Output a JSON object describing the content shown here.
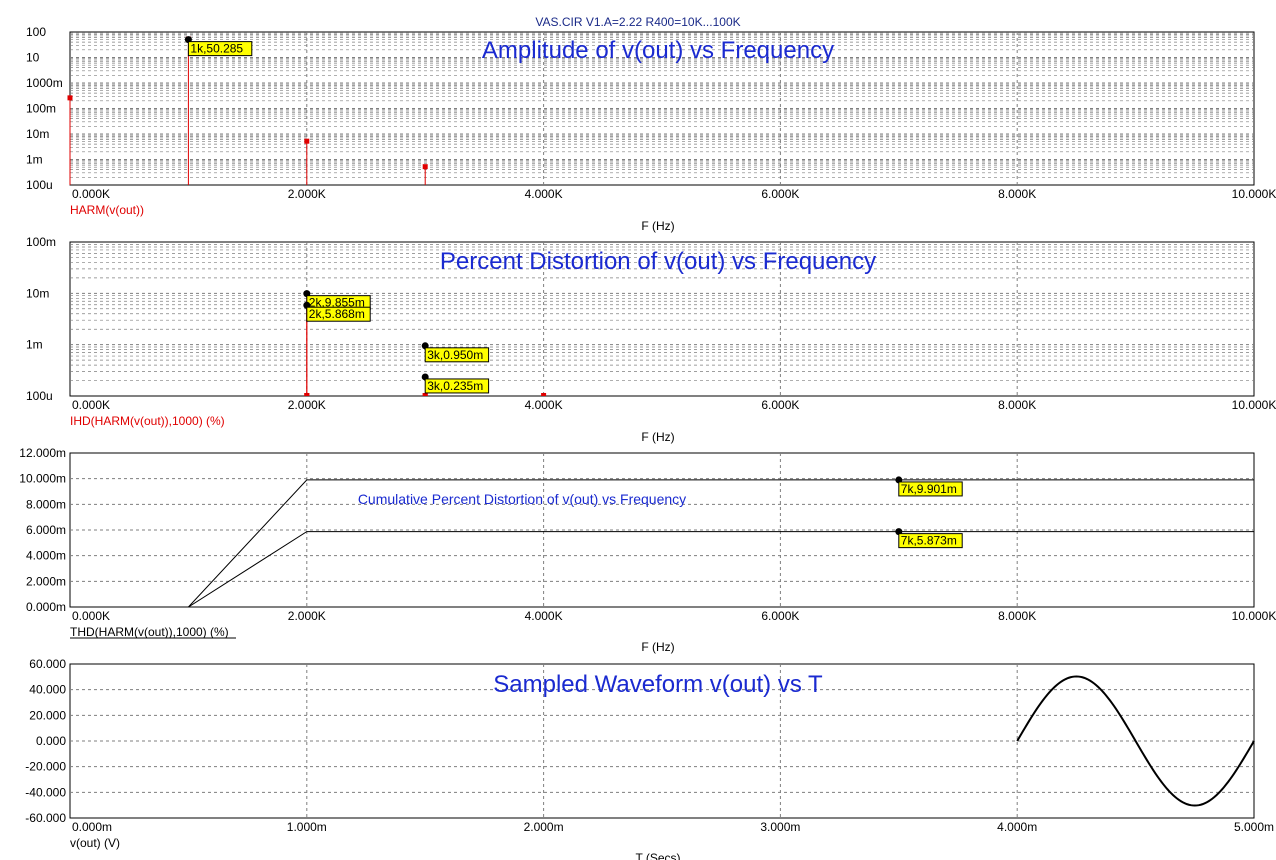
{
  "page_title": "VAS.CIR V1.A=2.22 R400=10K...100K",
  "colors": {
    "series_red": "#e00000",
    "series_black": "#000000",
    "title_blue": "#1a2ad0",
    "label_box": "#ffff00",
    "grid": "#7f7f7f"
  },
  "chart_data": [
    {
      "type": "bar",
      "title": "Amplitude of v(out) vs Frequency",
      "xlabel": "F (Hz)",
      "ylabel": "HARM(v(out))",
      "x_ticks": [
        "0.000K",
        "2.000K",
        "4.000K",
        "6.000K",
        "8.000K",
        "10.000K"
      ],
      "y_ticks": [
        "100",
        "10",
        "1000m",
        "100m",
        "10m",
        "1m",
        "100u"
      ],
      "x_range_hz": [
        0,
        10000
      ],
      "y_scale": "log",
      "y_range": [
        0.0001,
        100
      ],
      "grid": true,
      "series": [
        {
          "name": "HARM(v(out))",
          "x": [
            0,
            1000,
            2000,
            3000
          ],
          "y": [
            0.25,
            50.285,
            0.005,
            0.0005
          ]
        }
      ],
      "annotations": [
        {
          "text": "1k,50.285",
          "x": 1000,
          "y": 50.285
        }
      ]
    },
    {
      "type": "bar",
      "title": "Percent Distortion of v(out) vs Frequency",
      "xlabel": "F (Hz)",
      "ylabel": "IHD(HARM(v(out)),1000) (%)",
      "x_ticks": [
        "0.000K",
        "2.000K",
        "4.000K",
        "6.000K",
        "8.000K",
        "10.000K"
      ],
      "y_ticks": [
        "100m",
        "10m",
        "1m",
        "100u"
      ],
      "x_range_hz": [
        0,
        10000
      ],
      "y_scale": "log",
      "y_range": [
        0.0001,
        0.1
      ],
      "grid": true,
      "series": [
        {
          "name": "IHD(HARM(v(out)),1000) (%)",
          "x": [
            2000,
            2000,
            3000,
            3000,
            4000
          ],
          "y": [
            0.009855,
            0.005868,
            0.00095,
            0.000235,
            0.00011
          ]
        }
      ],
      "annotations": [
        {
          "text": "2k,9.855m",
          "x": 2000,
          "y": 0.009855
        },
        {
          "text": "2k,5.868m",
          "x": 2000,
          "y": 0.005868
        },
        {
          "text": "3k,0.950m",
          "x": 3000,
          "y": 0.00095
        },
        {
          "text": "3k,0.235m",
          "x": 3000,
          "y": 0.000235
        }
      ]
    },
    {
      "type": "line",
      "title": "Cumulative Percent Distortion of v(out) vs Frequency",
      "xlabel": "F (Hz)",
      "ylabel": "THD(HARM(v(out)),1000) (%)",
      "x_ticks": [
        "0.000K",
        "2.000K",
        "4.000K",
        "6.000K",
        "8.000K",
        "10.000K"
      ],
      "y_ticks": [
        "12.000m",
        "10.000m",
        "8.000m",
        "6.000m",
        "4.000m",
        "2.000m",
        "0.000m"
      ],
      "x_range_hz": [
        0,
        10000
      ],
      "y_range": [
        0,
        0.012
      ],
      "grid": true,
      "series": [
        {
          "x": [
            0,
            1000,
            2000,
            10000
          ],
          "y": [
            0,
            0,
            0.009901,
            0.009901
          ]
        },
        {
          "x": [
            0,
            1000,
            2000,
            10000
          ],
          "y": [
            0,
            0,
            0.005873,
            0.005873
          ]
        }
      ],
      "annotations": [
        {
          "text": "7k,9.901m",
          "x": 7000,
          "y": 0.009901
        },
        {
          "text": "7k,5.873m",
          "x": 7000,
          "y": 0.005873
        }
      ]
    },
    {
      "type": "line",
      "title": "Sampled Waveform  v(out) vs T",
      "xlabel": "T (Secs)",
      "ylabel": "v(out) (V)",
      "x_ticks": [
        "0.000m",
        "1.000m",
        "2.000m",
        "3.000m",
        "4.000m",
        "5.000m"
      ],
      "y_ticks": [
        "60.000",
        "40.000",
        "20.000",
        "0.000",
        "-20.000",
        "-40.000",
        "-60.000"
      ],
      "x_range_s": [
        0,
        0.005
      ],
      "y_range": [
        -60,
        60
      ],
      "grid": true,
      "series": [
        {
          "name": "v(out) (V)",
          "t_start": 0.004,
          "t_end": 0.005,
          "amplitude": 50.285,
          "frequency_hz": 1000
        }
      ]
    }
  ]
}
